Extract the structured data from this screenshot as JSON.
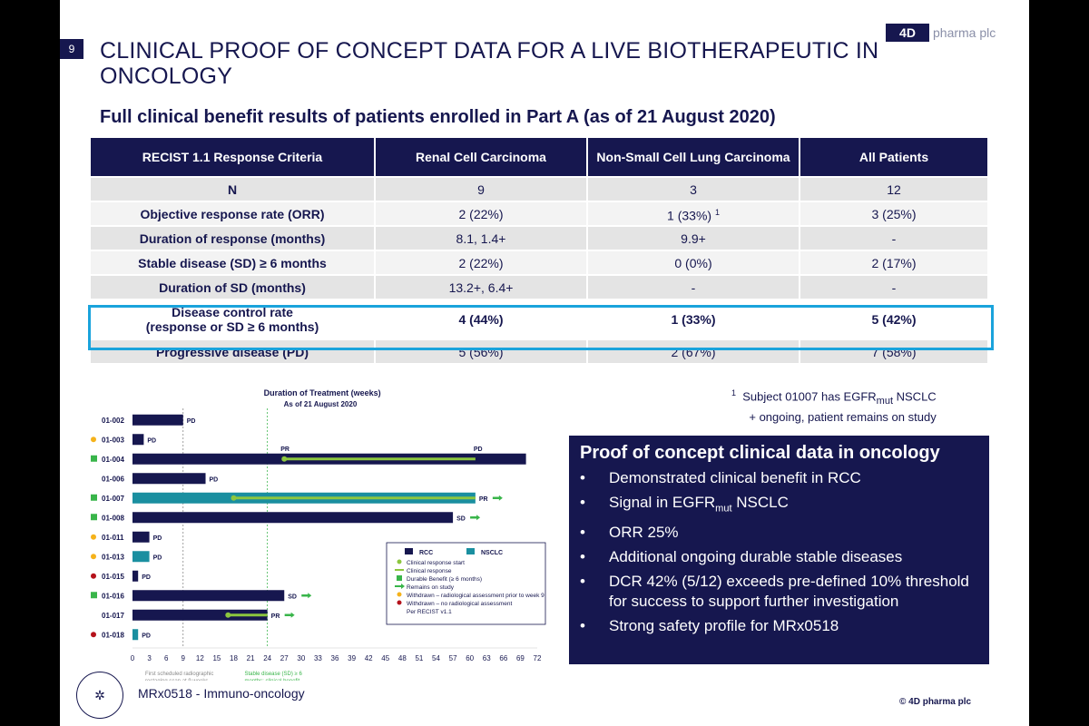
{
  "page": {
    "number": "9",
    "title": "CLINICAL PROOF OF CONCEPT DATA FOR A LIVE BIOTHERAPEUTIC IN ONCOLOGY",
    "logo_mark": "4D",
    "logo_text": "pharma plc",
    "subtitle": "Full clinical benefit results of patients enrolled in Part A (as of 21 August 2020)",
    "footer_name": "MRx0518 - Immuno-oncology",
    "copyright": "© 4D pharma plc"
  },
  "table": {
    "headers": [
      "RECIST 1.1 Response Criteria",
      "Renal Cell Carcinoma",
      "Non-Small Cell Lung Carcinoma",
      "All Patients"
    ],
    "rows": [
      {
        "label": "N",
        "values": [
          "9",
          "3",
          "12"
        ]
      },
      {
        "label": "Objective response rate (ORR)",
        "values": [
          "2 (22%)",
          "1 (33%)",
          "3 (25%)"
        ],
        "note_nsclc": "1"
      },
      {
        "label": "Duration of response (months)",
        "values": [
          "8.1, 1.4+",
          "9.9+",
          "-"
        ]
      },
      {
        "label": "Stable disease (SD) ≥ 6 months",
        "values": [
          "2 (22%)",
          "0 (0%)",
          "2 (17%)"
        ]
      },
      {
        "label": "Duration of SD (months)",
        "values": [
          "13.2+, 6.4+",
          "-",
          "-"
        ]
      },
      {
        "label_line1": "Disease control rate",
        "label_line2": "(response or SD ≥ 6 months)",
        "values": [
          "4 (44%)",
          "1 (33%)",
          "5 (42%)"
        ]
      },
      {
        "label": "Progressive disease (PD)",
        "values": [
          "5 (56%)",
          "2 (67%)",
          "7 (58%)"
        ]
      }
    ]
  },
  "footnotes": {
    "note1_marker": "1",
    "note1_pre": "Subject 01007 has EGFR",
    "note1_sub": "mut",
    "note1_post": " NSCLC",
    "note2": "+  ongoing, patient remains on study"
  },
  "panel": {
    "title": "Proof of concept clinical data in oncology",
    "bullet": "•",
    "b1": "Demonstrated clinical benefit in RCC",
    "b2_pre": "Signal in EGFR",
    "b2_sub": "mut",
    "b2_post": " NSCLC",
    "b3": "ORR 25%",
    "b4": "Additional ongoing durable stable diseases",
    "b5": "DCR 42% (5/12) exceeds pre-defined 10% threshold for success to support further investigation",
    "b6": "Strong safety profile for MRx0518"
  },
  "chart_data": {
    "type": "bar",
    "title": "Duration of Treatment (weeks)",
    "subtitle": "As of 21 August 2020",
    "x_ticks": [
      0,
      3,
      6,
      9,
      12,
      15,
      18,
      21,
      24,
      27,
      30,
      33,
      36,
      39,
      42,
      45,
      48,
      51,
      54,
      57,
      60,
      63,
      66,
      69,
      72
    ],
    "xlim": [
      0,
      72
    ],
    "ref_lines": [
      {
        "x": 9,
        "label": "First scheduled radiographic restaging scan at 9 weeks",
        "color": "#888888"
      },
      {
        "x": 24,
        "label": "Stable disease (SD) ≥ 6 months; clinical benefit",
        "color": "#39b54a"
      }
    ],
    "colors": {
      "rcc": "#16174f",
      "nsclc": "#1a8fa0",
      "response": "#8cc63f",
      "durable": "#39b54a",
      "withdrawn_9": "#f5b21b",
      "withdrawn_none": "#b5121b"
    },
    "legend": {
      "rcc": "RCC",
      "nsclc": "NSCLC",
      "items": [
        "Clinical response start",
        "Clinical response",
        "Durable Benefit (≥ 6 months)",
        "Remains on study",
        "Withdrawn – radiological assessment prior to week 9",
        "Withdrawn – no radiological assessment",
        "Per RECIST v1.1"
      ]
    },
    "patients": [
      {
        "id": "01-002",
        "weeks": 9,
        "type": "rcc",
        "outcome": "PD",
        "marker": ""
      },
      {
        "id": "01-003",
        "weeks": 2,
        "type": "rcc",
        "outcome": "PD",
        "marker": "withdrawn_9"
      },
      {
        "id": "01-004",
        "weeks": 70,
        "type": "rcc",
        "outcome": "PD",
        "marker": "durable",
        "response_start": 27,
        "response_end": 61,
        "label_pr": "PR"
      },
      {
        "id": "01-006",
        "weeks": 13,
        "type": "rcc",
        "outcome": "PD",
        "marker": ""
      },
      {
        "id": "01-007",
        "weeks": 61,
        "type": "nsclc",
        "outcome": "PR",
        "marker": "durable",
        "response_start": 18,
        "response_end": 61,
        "ongoing": true
      },
      {
        "id": "01-008",
        "weeks": 57,
        "type": "rcc",
        "outcome": "SD",
        "marker": "durable",
        "ongoing": true
      },
      {
        "id": "01-011",
        "weeks": 3,
        "type": "rcc",
        "outcome": "PD",
        "marker": "withdrawn_9"
      },
      {
        "id": "01-013",
        "weeks": 3,
        "type": "nsclc",
        "outcome": "PD",
        "marker": "withdrawn_9"
      },
      {
        "id": "01-015",
        "weeks": 1,
        "type": "rcc",
        "outcome": "PD",
        "marker": "withdrawn_none"
      },
      {
        "id": "01-016",
        "weeks": 27,
        "type": "rcc",
        "outcome": "SD",
        "marker": "durable",
        "ongoing": true
      },
      {
        "id": "01-017",
        "weeks": 24,
        "type": "rcc",
        "outcome": "PR",
        "marker": "",
        "response_start": 17,
        "response_end": 24,
        "ongoing": true
      },
      {
        "id": "01-018",
        "weeks": 1,
        "type": "nsclc",
        "outcome": "PD",
        "marker": "withdrawn_none"
      }
    ]
  }
}
